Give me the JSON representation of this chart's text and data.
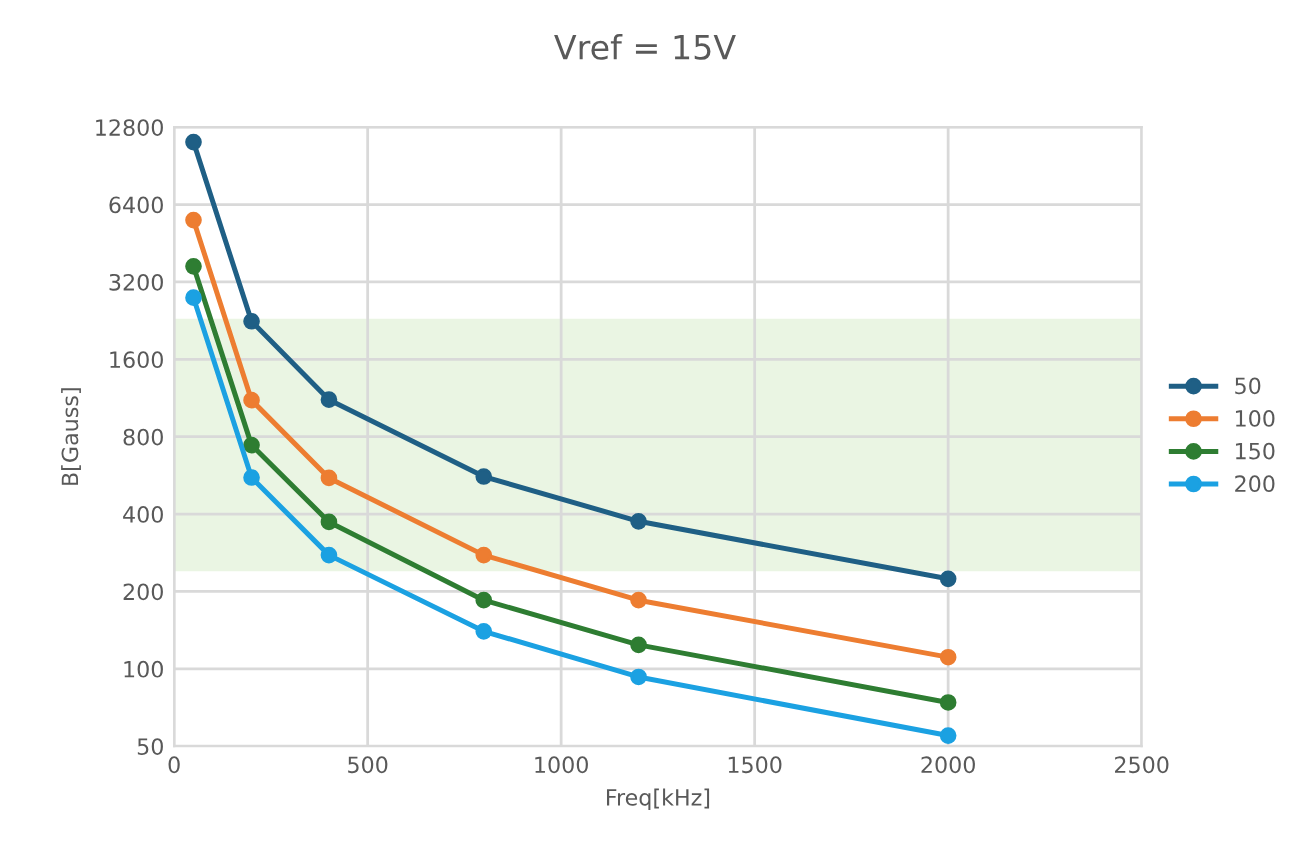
{
  "chart_data": {
    "type": "line",
    "title": "Vref = 15V",
    "xlabel": "Freq[kHz]",
    "ylabel": "B[Gauss]",
    "x": [
      50,
      200,
      400,
      800,
      1200,
      2000
    ],
    "series": [
      {
        "name": "50",
        "color": "#1f5f85",
        "values": [
          11200,
          2250,
          1115,
          560,
          375,
          224
        ]
      },
      {
        "name": "100",
        "color": "#ed7d31",
        "values": [
          5570,
          1110,
          553,
          277,
          185,
          111
        ]
      },
      {
        "name": "150",
        "color": "#2e7d32",
        "values": [
          3680,
          742,
          373,
          185,
          124,
          74
        ]
      },
      {
        "name": "200",
        "color": "#1ba1e2",
        "values": [
          2780,
          555,
          277,
          140,
          93,
          55
        ]
      }
    ],
    "log": "y",
    "xlim": [
      0,
      2500
    ],
    "xticks": [
      0,
      500,
      1000,
      1500,
      2000,
      2500
    ],
    "ylim": [
      50,
      12800
    ],
    "yticks": [
      50,
      100,
      200,
      400,
      800,
      1600,
      3200,
      6400,
      12800
    ],
    "bands": [
      {
        "axis": "y",
        "from": 240,
        "to": 2300,
        "color": "#eaf5e3"
      }
    ],
    "grid": true,
    "legend": "right",
    "marker": "circle",
    "line_style": "solid"
  }
}
